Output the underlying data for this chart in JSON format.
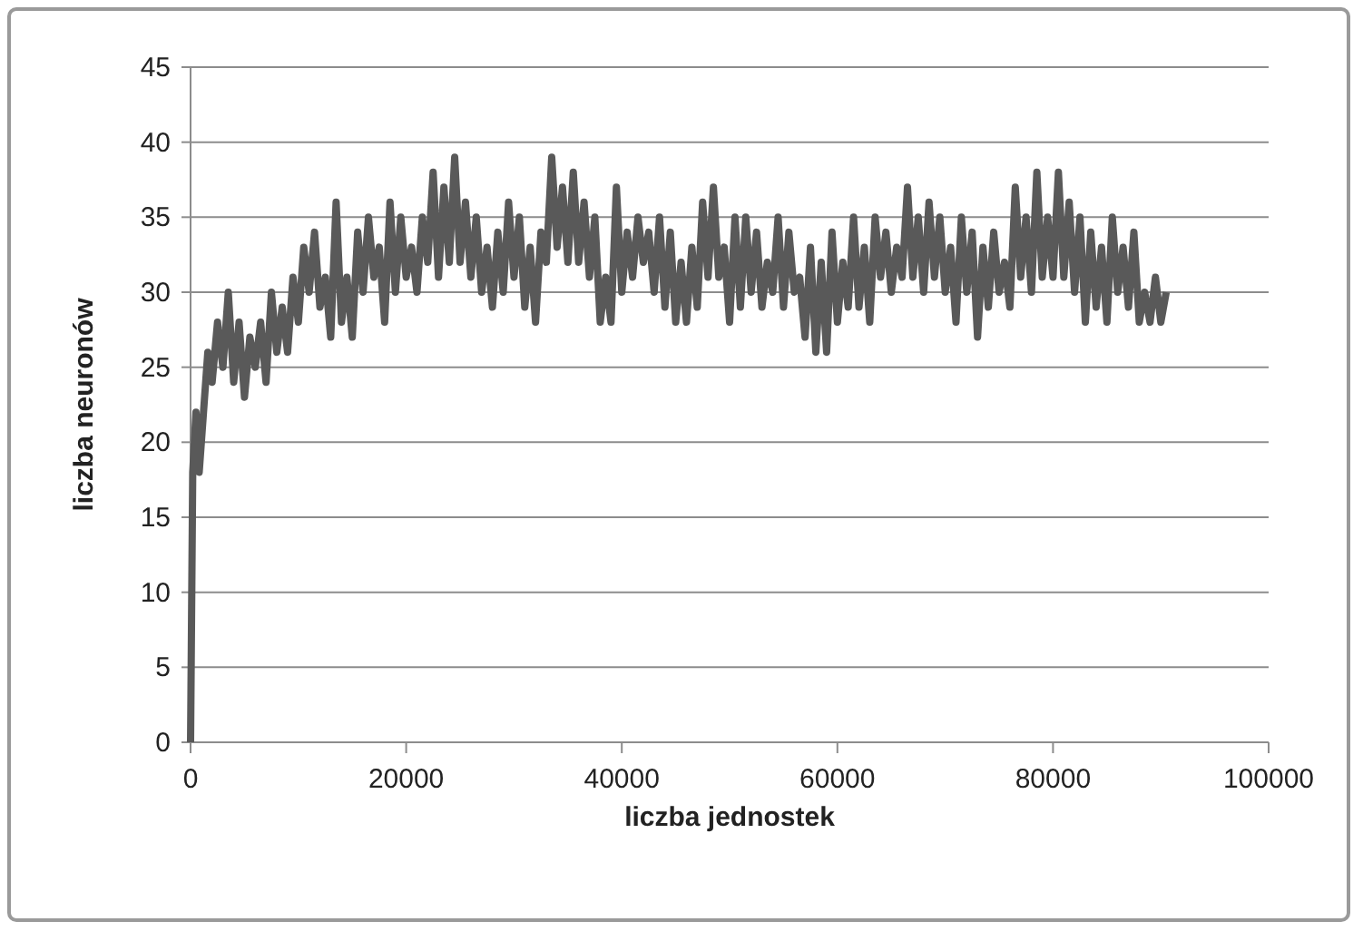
{
  "chart_data": {
    "type": "line",
    "xlabel": "liczba jednostek",
    "ylabel": "liczba neuronów",
    "xlim": [
      0,
      100000
    ],
    "xticks": [
      0,
      20000,
      40000,
      60000,
      80000,
      100000
    ],
    "ylim": [
      0,
      45
    ],
    "yticks": [
      0,
      5,
      10,
      15,
      20,
      25,
      30,
      35,
      40,
      45
    ],
    "grid": "y",
    "marker": "none",
    "line_style": "solid",
    "series": [
      {
        "color": "#595959",
        "x": [
          0,
          200,
          500,
          800,
          1200,
          1600,
          2000,
          2500,
          3000,
          3500,
          4000,
          4500,
          5000,
          5500,
          6000,
          6500,
          7000,
          7500,
          8000,
          8500,
          9000,
          9500,
          10000,
          10500,
          11000,
          11500,
          12000,
          12500,
          13000,
          13500,
          14000,
          14500,
          15000,
          15500,
          16000,
          16500,
          17000,
          17500,
          18000,
          18500,
          19000,
          19500,
          20000,
          20500,
          21000,
          21500,
          22000,
          22500,
          23000,
          23500,
          24000,
          24500,
          25000,
          25500,
          26000,
          26500,
          27000,
          27500,
          28000,
          28500,
          29000,
          29500,
          30000,
          30500,
          31000,
          31500,
          32000,
          32500,
          33000,
          33500,
          34000,
          34500,
          35000,
          35500,
          36000,
          36500,
          37000,
          37500,
          38000,
          38500,
          39000,
          39500,
          40000,
          40500,
          41000,
          41500,
          42000,
          42500,
          43000,
          43500,
          44000,
          44500,
          45000,
          45500,
          46000,
          46500,
          47000,
          47500,
          48000,
          48500,
          49000,
          49500,
          50000,
          50500,
          51000,
          51500,
          52000,
          52500,
          53000,
          53500,
          54000,
          54500,
          55000,
          55500,
          56000,
          56500,
          57000,
          57500,
          58000,
          58500,
          59000,
          59500,
          60000,
          60500,
          61000,
          61500,
          62000,
          62500,
          63000,
          63500,
          64000,
          64500,
          65000,
          65500,
          66000,
          66500,
          67000,
          67500,
          68000,
          68500,
          69000,
          69500,
          70000,
          70500,
          71000,
          71500,
          72000,
          72500,
          73000,
          73500,
          74000,
          74500,
          75000,
          75500,
          76000,
          76500,
          77000,
          77500,
          78000,
          78500,
          79000,
          79500,
          80000,
          80500,
          81000,
          81500,
          82000,
          82500,
          83000,
          83500,
          84000,
          84500,
          85000,
          85500,
          86000,
          86500,
          87000,
          87500,
          88000,
          88500,
          89000,
          89500,
          90000,
          90500
        ],
        "values": [
          0,
          18,
          22,
          18,
          22,
          26,
          24,
          28,
          25,
          30,
          24,
          28,
          23,
          27,
          25,
          28,
          24,
          30,
          26,
          29,
          26,
          31,
          28,
          33,
          30,
          34,
          29,
          31,
          27,
          36,
          28,
          31,
          27,
          34,
          30,
          35,
          31,
          33,
          28,
          36,
          30,
          35,
          31,
          33,
          30,
          35,
          32,
          38,
          31,
          37,
          32,
          39,
          32,
          36,
          31,
          35,
          30,
          33,
          29,
          34,
          30,
          36,
          31,
          35,
          29,
          33,
          28,
          34,
          32,
          39,
          33,
          37,
          32,
          38,
          32,
          36,
          31,
          35,
          28,
          31,
          28,
          37,
          30,
          34,
          31,
          35,
          32,
          34,
          30,
          35,
          29,
          34,
          28,
          32,
          28,
          33,
          29,
          36,
          31,
          37,
          31,
          33,
          28,
          35,
          29,
          35,
          30,
          34,
          29,
          32,
          30,
          35,
          29,
          34,
          30,
          31,
          27,
          33,
          26,
          32,
          26,
          34,
          28,
          32,
          29,
          35,
          29,
          33,
          28,
          35,
          31,
          34,
          30,
          33,
          31,
          37,
          31,
          35,
          30,
          36,
          31,
          35,
          30,
          33,
          28,
          35,
          30,
          34,
          27,
          33,
          29,
          34,
          30,
          32,
          29,
          37,
          31,
          35,
          30,
          38,
          31,
          35,
          31,
          38,
          31,
          36,
          30,
          35,
          28,
          34,
          29,
          33,
          28,
          35,
          30,
          33,
          29,
          34,
          28,
          30,
          28,
          31,
          28,
          30
        ]
      }
    ]
  }
}
